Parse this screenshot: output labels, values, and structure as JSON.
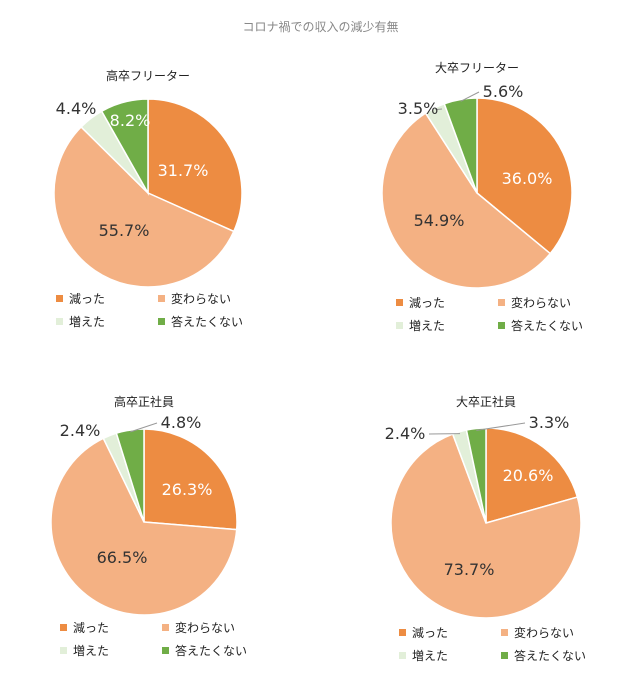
{
  "title": "コロナ禍での収入の減少有無",
  "colors": {
    "減った": "#ED8C42",
    "変わらない": "#F4B183",
    "増えた": "#E2EFD9",
    "答えたくない": "#70AD47"
  },
  "chart_data": [
    {
      "type": "pie",
      "title": "高卒フリーター",
      "categories": [
        "減った",
        "変わらない",
        "増えた",
        "答えたくない"
      ],
      "values": [
        31.7,
        55.7,
        4.4,
        8.2
      ],
      "labels": [
        "31.7%",
        "55.7%",
        "4.4%",
        "8.2%"
      ],
      "legend": "bottom"
    },
    {
      "type": "pie",
      "title": "大卒フリーター",
      "categories": [
        "減った",
        "変わらない",
        "増えた",
        "答えたくない"
      ],
      "values": [
        36.0,
        54.9,
        3.5,
        5.6
      ],
      "labels": [
        "36.0%",
        "54.9%",
        "3.5%",
        "5.6%"
      ],
      "legend": "bottom"
    },
    {
      "type": "pie",
      "title": "高卒正社員",
      "categories": [
        "減った",
        "変わらない",
        "増えた",
        "答えたくない"
      ],
      "values": [
        26.3,
        66.5,
        2.4,
        4.8
      ],
      "labels": [
        "26.3%",
        "66.5%",
        "2.4%",
        "4.8%"
      ],
      "legend": "bottom"
    },
    {
      "type": "pie",
      "title": "大卒正社員",
      "categories": [
        "減った",
        "変わらない",
        "増えた",
        "答えたくない"
      ],
      "values": [
        20.6,
        73.7,
        2.4,
        3.3
      ],
      "labels": [
        "20.6%",
        "73.7%",
        "2.4%",
        "3.3%"
      ],
      "legend": "bottom"
    }
  ]
}
